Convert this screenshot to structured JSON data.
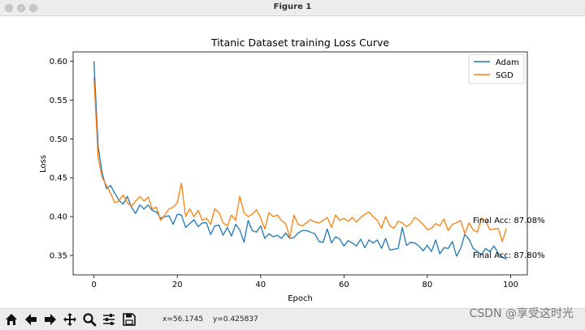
{
  "window": {
    "title": "Figure 1"
  },
  "toolbar": {
    "buttons": [
      "home-icon",
      "back-arrow-icon",
      "forward-arrow-icon",
      "pan-icon",
      "zoom-icon",
      "configure-subplots-icon",
      "save-icon"
    ],
    "x_readout": "x=56.1745",
    "y_readout": "y=0.425837"
  },
  "watermark": "CSDN @享受这时光",
  "chart_data": {
    "type": "line",
    "title": "Titanic Dataset training Loss Curve",
    "xlabel": "Epoch",
    "ylabel": "Loss",
    "xlim": [
      -5,
      104
    ],
    "ylim": [
      0.325,
      0.612
    ],
    "xticks": [
      0,
      20,
      40,
      60,
      80,
      100
    ],
    "yticks": [
      0.35,
      0.4,
      0.45,
      0.5,
      0.55,
      0.6
    ],
    "ytick_labels": [
      "0.35",
      "0.40",
      "0.45",
      "0.50",
      "0.55",
      "0.60"
    ],
    "grid": false,
    "legend_position": "top-right",
    "series": [
      {
        "name": "Adam",
        "color": "#1f77b4",
        "x_start": 0,
        "values": [
          0.6,
          0.49,
          0.455,
          0.436,
          0.44,
          0.43,
          0.421,
          0.416,
          0.426,
          0.412,
          0.404,
          0.415,
          0.41,
          0.415,
          0.408,
          0.406,
          0.398,
          0.4,
          0.401,
          0.39,
          0.403,
          0.402,
          0.386,
          0.391,
          0.396,
          0.387,
          0.392,
          0.392,
          0.377,
          0.388,
          0.389,
          0.376,
          0.386,
          0.375,
          0.39,
          0.383,
          0.367,
          0.395,
          0.382,
          0.38,
          0.388,
          0.372,
          0.378,
          0.374,
          0.376,
          0.372,
          0.379,
          0.372,
          0.373,
          0.379,
          0.382,
          0.382,
          0.38,
          0.378,
          0.368,
          0.367,
          0.384,
          0.366,
          0.374,
          0.371,
          0.362,
          0.369,
          0.366,
          0.362,
          0.371,
          0.36,
          0.37,
          0.366,
          0.37,
          0.359,
          0.372,
          0.357,
          0.358,
          0.359,
          0.386,
          0.363,
          0.367,
          0.366,
          0.362,
          0.356,
          0.363,
          0.355,
          0.37,
          0.352,
          0.36,
          0.359,
          0.368,
          0.349,
          0.359,
          0.377,
          0.371,
          0.359,
          0.355,
          0.351,
          0.359,
          0.355,
          0.362,
          0.353,
          0.348,
          0.345
        ],
        "final_label": "Final Acc: 87.80%"
      },
      {
        "name": "SGD",
        "color": "#ff7f0e",
        "x_start": 0,
        "values": [
          0.58,
          0.475,
          0.45,
          0.44,
          0.43,
          0.418,
          0.42,
          0.428,
          0.418,
          0.413,
          0.42,
          0.426,
          0.42,
          0.425,
          0.41,
          0.412,
          0.395,
          0.402,
          0.41,
          0.412,
          0.418,
          0.443,
          0.4,
          0.41,
          0.4,
          0.408,
          0.395,
          0.398,
          0.39,
          0.41,
          0.405,
          0.392,
          0.388,
          0.402,
          0.395,
          0.426,
          0.405,
          0.4,
          0.403,
          0.409,
          0.398,
          0.384,
          0.405,
          0.4,
          0.402,
          0.395,
          0.391,
          0.373,
          0.402,
          0.39,
          0.388,
          0.392,
          0.396,
          0.393,
          0.392,
          0.395,
          0.399,
          0.386,
          0.402,
          0.395,
          0.398,
          0.394,
          0.399,
          0.393,
          0.399,
          0.403,
          0.406,
          0.4,
          0.395,
          0.385,
          0.4,
          0.388,
          0.385,
          0.394,
          0.392,
          0.387,
          0.391,
          0.399,
          0.395,
          0.39,
          0.383,
          0.385,
          0.391,
          0.388,
          0.397,
          0.382,
          0.39,
          0.392,
          0.395,
          0.378,
          0.392,
          0.383,
          0.38,
          0.398,
          0.395,
          0.383,
          0.384,
          0.385,
          0.368,
          0.385
        ],
        "final_label": "Final Acc: 87.08%"
      }
    ]
  }
}
